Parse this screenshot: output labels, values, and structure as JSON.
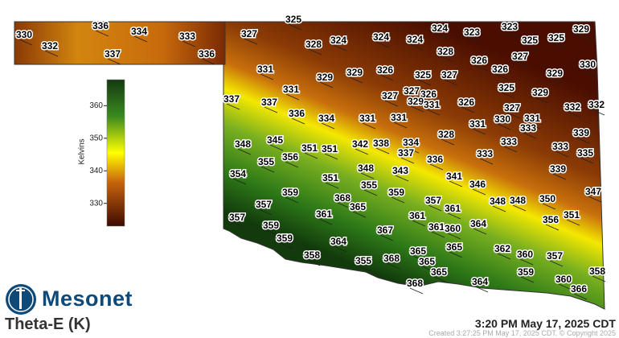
{
  "title": "Theta-E (K)",
  "brand": "Mesonet",
  "timestamp": "3:20 PM May 17, 2025 CDT",
  "created": "Created 3:27:25 PM May 17, 2025 CDT. © Copyright 2025",
  "colorbar": {
    "label": "Kelvins",
    "ticks": [
      "360",
      "350",
      "340",
      "330"
    ],
    "range": [
      323,
      368
    ],
    "colors": [
      "#3d0a00",
      "#c8640c",
      "#ffff00",
      "#3a8a20",
      "#143a10"
    ]
  },
  "colors": {
    "brand": "#0d4a7a"
  },
  "stations": [
    330,
    332,
    336,
    334,
    337,
    333,
    336,
    327,
    325,
    328,
    324,
    324,
    324,
    324,
    323,
    323,
    325,
    325,
    329,
    328,
    326,
    327,
    330,
    331,
    329,
    329,
    326,
    325,
    327,
    326,
    329,
    331,
    337,
    337,
    336,
    327,
    327,
    326,
    329,
    331,
    326,
    325,
    329,
    327,
    332,
    332,
    334,
    331,
    331,
    331,
    330,
    331,
    333,
    339,
    328,
    333,
    333,
    333,
    335,
    348,
    345,
    351,
    351,
    342,
    338,
    334,
    337,
    336,
    355,
    356,
    354,
    351,
    348,
    343,
    355,
    359,
    341,
    346,
    339,
    359,
    368,
    365,
    357,
    357,
    361,
    348,
    348,
    350,
    347,
    361,
    361,
    361,
    360,
    364,
    356,
    351,
    357,
    359,
    367,
    359,
    364,
    365,
    365,
    362,
    360,
    357,
    358,
    355,
    368,
    365,
    365,
    359,
    358,
    360,
    366,
    368,
    364
  ]
}
